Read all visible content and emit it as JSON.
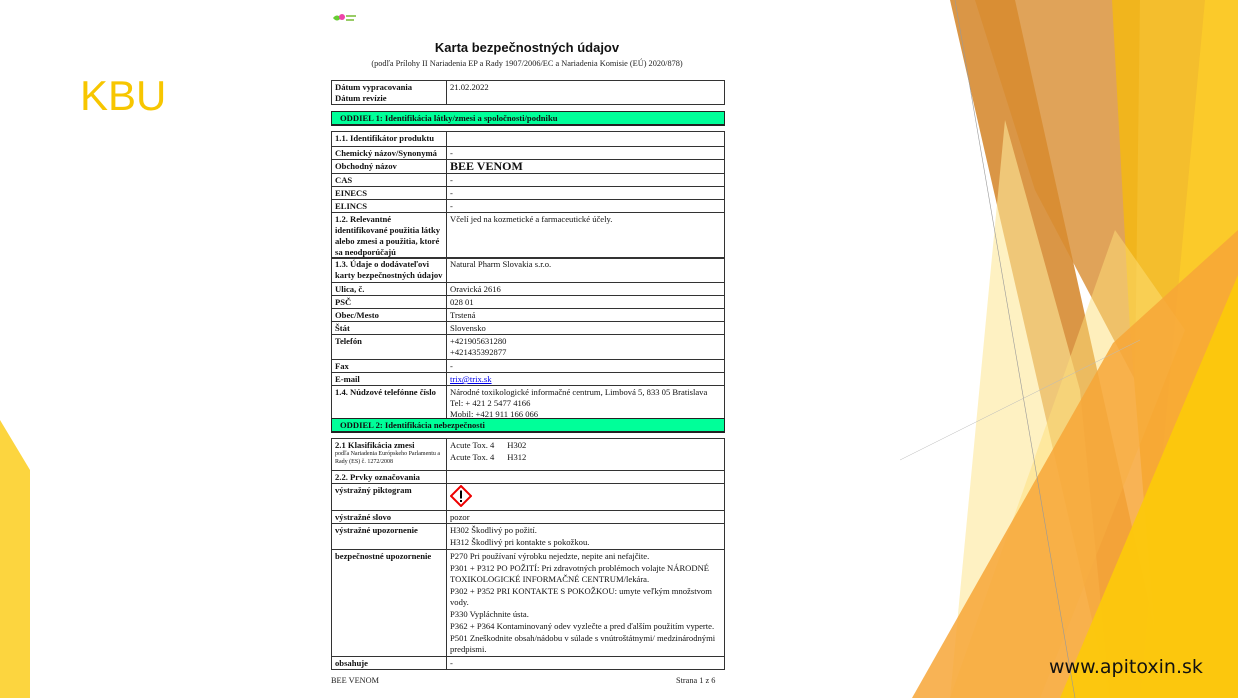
{
  "slide": {
    "heading": "KBU",
    "website": "www.apitoxin.sk",
    "colors": {
      "accent": "#f7c600",
      "orange": "#d9923a",
      "section_bar": "#00ff99"
    }
  },
  "document": {
    "title": "Karta bezpečnostných údajov",
    "subtitle": "(podľa Prílohy II Nariadenia EP a Rady 1907/2006/EC a Nariadenia Komisie (EÚ) 2020/878)",
    "dates": {
      "label1": "Dátum vypracovania",
      "label2": "Dátum revízie",
      "value": "21.02.2022"
    },
    "section1": "ODDIEL 1: Identifikácia látky/zmesi a spoločnosti/podniku",
    "table1": [
      {
        "label": "1.1. Identifikátor produktu",
        "value": ""
      },
      {
        "label": "Chemický názov/Synonymá",
        "value": "-"
      },
      {
        "label": "Obchodný názov",
        "value": "BEE VENOM"
      },
      {
        "label": "CAS",
        "value": "-"
      },
      {
        "label": "EINECS",
        "value": "-"
      },
      {
        "label": "ELINCS",
        "value": "-"
      },
      {
        "label": "1.2. Relevantné identifikované použitia látky alebo zmesi a použitia, ktoré sa neodporúčajú",
        "value": "Včelí jed na kozmetické a farmaceutické účely."
      }
    ],
    "table2": [
      {
        "label": "1.3. Údaje o dodávateľovi karty bezpečnostných údajov",
        "value": "Natural Pharm Slovakia s.r.o."
      },
      {
        "label": "Ulica, č.",
        "value": "Oravická 2616"
      },
      {
        "label": "PSČ",
        "value": "028 01"
      },
      {
        "label": "Obec/Mesto",
        "value": "Trstená"
      },
      {
        "label": "Štát",
        "value": "Slovensko"
      },
      {
        "label": "Telefón",
        "lines": [
          "+421905631280",
          "+421435392877"
        ]
      },
      {
        "label": "Fax",
        "value": "-"
      },
      {
        "label": "E-mail",
        "link": "trix@trix.sk"
      },
      {
        "label": "1.4. Núdzové telefónne číslo",
        "lines": [
          "Národné toxikologické informačné centrum, Limbová 5, 833 05 Bratislava",
          "Tel: + 421 2 5477 4166",
          "Mobil: +421 911 166 066"
        ]
      }
    ],
    "section2": "ODDIEL 2: Identifikácia nebezpečnosti",
    "table3": [
      {
        "label": "2.1 Klasifikácia zmesi",
        "note": "podľa Nariadenia Európskeho Parlamentu a Rady (ES) č. 1272/2008",
        "lines": [
          "Acute Tox. 4      H302",
          "Acute Tox. 4      H312"
        ]
      },
      {
        "label": "2.2. Prvky označovania",
        "value": ""
      },
      {
        "label": "výstražný piktogram",
        "pictogram": "ghs-exclamation-icon"
      },
      {
        "label": "výstražné slovo",
        "value": "pozor"
      },
      {
        "label": "výstražné upozornenie",
        "lines": [
          "H302 Škodlivý po požití.",
          "H312 Škodlivý pri kontakte s pokožkou."
        ]
      },
      {
        "label": "bezpečnostné upozornenie",
        "lines": [
          "P270 Pri používaní výrobku nejedzte, nepite ani nefajčite.",
          "P301 + P312 PO POŽITÍ: Pri zdravotných problémoch volajte NÁRODNÉ TOXIKOLOGICKÉ INFORMAČNÉ CENTRUM/lekára.",
          "P302 + P352 PRI KONTAKTE S POKOŽKOU: umyte veľkým množstvom vody.",
          "P330 Vypláchnite ústa.",
          "P362 + P364 Kontaminovaný odev vyzlečte a pred ďalším použitím vyperte.",
          "P501 Zneškodnite obsah/nádobu v súlade s vnútroštátnymi/ medzinárodnými predpismi."
        ]
      },
      {
        "label": "obsahuje",
        "value": "-"
      }
    ],
    "footer": {
      "left": "BEE VENOM",
      "right": "Strana 1 z 6"
    }
  }
}
